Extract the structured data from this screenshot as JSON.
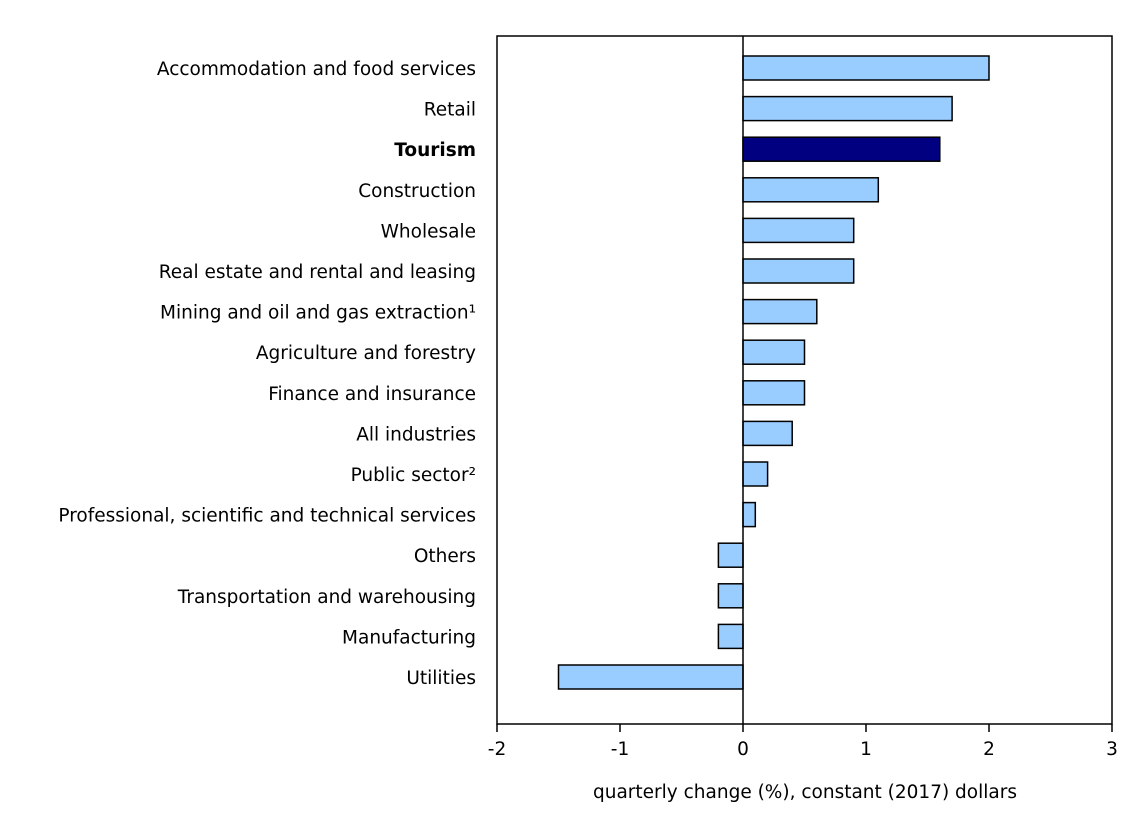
{
  "chart_data": {
    "type": "bar",
    "orientation": "horizontal",
    "title": "",
    "xlabel": "quarterly change (%), constant (2017) dollars",
    "ylabel": "",
    "xlim": [
      -2,
      3
    ],
    "xticks": [
      "-2",
      "-1",
      "0",
      "1",
      "2",
      "3"
    ],
    "grid": false,
    "categories": [
      "Accommodation and food services",
      "Retail",
      "Tourism",
      "Construction",
      "Wholesale",
      "Real estate and rental and leasing",
      "Mining and oil and gas extraction¹",
      "Agriculture and forestry",
      "Finance and insurance",
      "All industries",
      "Public sector²",
      "Professional, scientific and technical services",
      "Others",
      "Transportation and warehousing",
      "Manufacturing",
      "Utilities"
    ],
    "values": [
      2.0,
      1.7,
      1.6,
      1.1,
      0.9,
      0.9,
      0.6,
      0.5,
      0.5,
      0.4,
      0.2,
      0.1,
      -0.2,
      -0.2,
      -0.2,
      -1.5
    ],
    "highlight": "Tourism",
    "colors": {
      "bar": "#99ccff",
      "highlight": "#000080",
      "stroke": "#000000"
    }
  }
}
